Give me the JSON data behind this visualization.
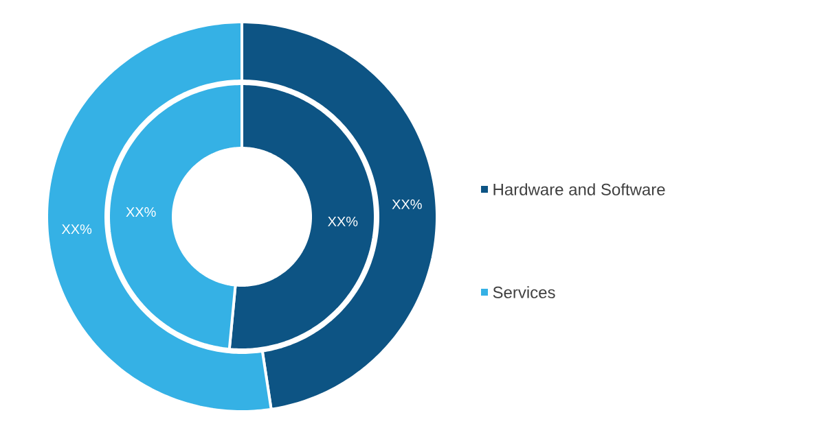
{
  "chart_data": {
    "type": "donut",
    "categories": [
      "Hardware and Software",
      "Services"
    ],
    "colors": [
      "#0d5484",
      "#35b1e5"
    ],
    "legend": "right",
    "series": [
      {
        "values": [
          51.5,
          48.5
        ],
        "value_labels": [
          "XX%",
          "XX%"
        ]
      },
      {
        "values": [
          47.6,
          52.4
        ],
        "value_labels": [
          "XX%",
          "XX%"
        ]
      }
    ]
  }
}
